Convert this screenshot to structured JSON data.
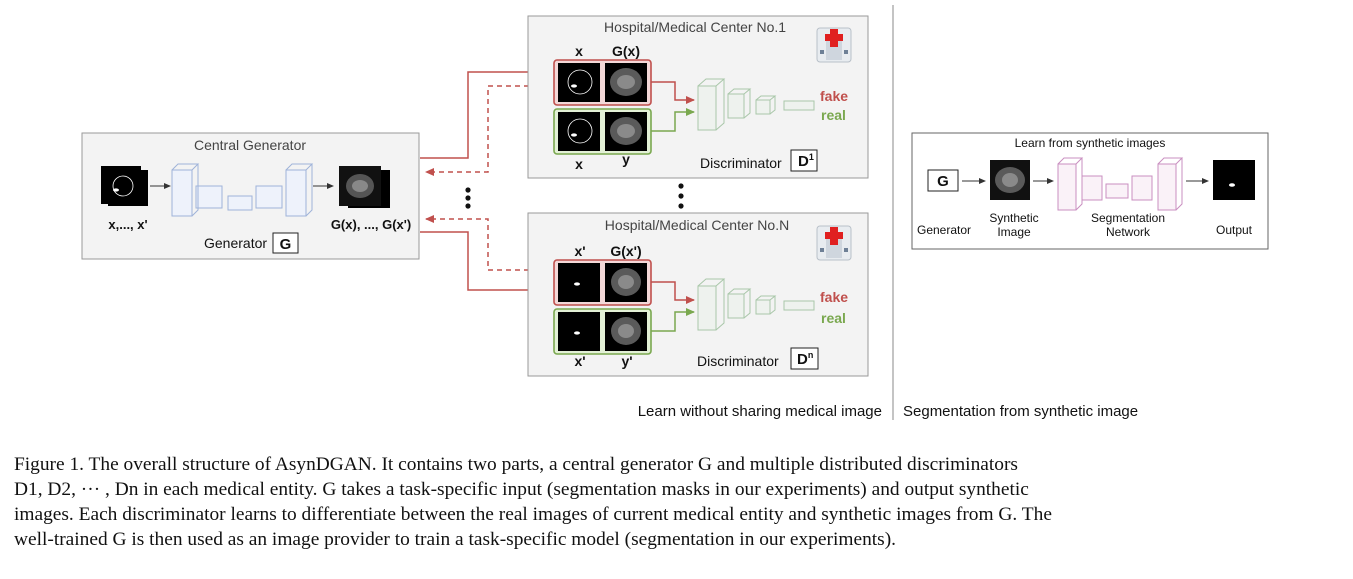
{
  "figure": {
    "central": {
      "title": "Central Generator",
      "input_label": "x,..., x'",
      "output_label": "G(x), ..., G(x')",
      "generator_label": "Generator",
      "generator_symbol": "G"
    },
    "hospital1": {
      "title": "Hospital/Medical Center No.1",
      "top_col1": "x",
      "top_col2": "G(x)",
      "bottom_col1": "x",
      "bottom_col2": "y",
      "fake": "fake",
      "real": "real",
      "disc_label": "Discriminator",
      "disc_symbol": "D",
      "disc_sup": "1"
    },
    "hospitalN": {
      "title": "Hospital/Medical Center No.N",
      "top_col1": "x'",
      "top_col2": "G(x')",
      "bottom_col1": "x'",
      "bottom_col2": "y'",
      "fake": "fake",
      "real": "real",
      "disc_label": "Discriminator",
      "disc_symbol": "D",
      "disc_sup": "n"
    },
    "segmentation": {
      "title": "Learn from synthetic images",
      "generator_symbol": "G",
      "generator_label": "Generator",
      "synthetic_line1": "Synthetic",
      "synthetic_line2": "Image",
      "network_line1": "Segmentation",
      "network_line2": "Network",
      "output_label": "Output"
    },
    "bottom_left": "Learn without sharing medical image",
    "bottom_right": "Segmentation from synthetic image"
  },
  "caption": {
    "label": "Figure 1.",
    "line1": "The overall structure of AsynDGAN. It contains two parts, a central generator G and multiple distributed discriminators",
    "line2": "D1, D2, ··· , Dn in each medical entity. G takes a task-specific input (segmentation masks in our experiments) and output synthetic",
    "line3": "images. Each discriminator learns to differentiate between the real images of current medical entity and synthetic images from G. The",
    "line4": "well-trained G is then used as an image provider to train a task-specific model (segmentation in our experiments)."
  },
  "colors": {
    "panel_bg": "#f3f3f3",
    "panel_border": "#9a9a9a",
    "red": "#c0504d",
    "green": "#7aa84f",
    "blue": "#9fb3d9",
    "pink": "#c98fc0"
  }
}
